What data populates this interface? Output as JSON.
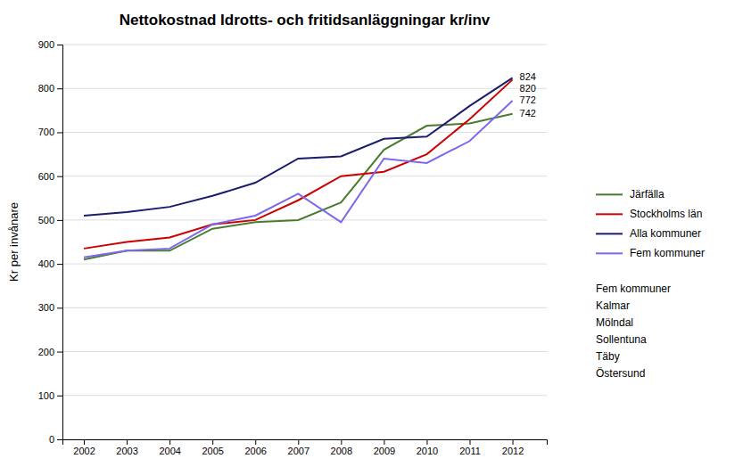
{
  "chart_data": {
    "type": "line",
    "title": "Nettokostnad Idrotts- och fritidsanläggningar kr/inv",
    "y_label": "Kr per invånare",
    "x": [
      2002,
      2003,
      2004,
      2005,
      2006,
      2007,
      2008,
      2009,
      2010,
      2011,
      2012
    ],
    "series": [
      {
        "name": "Järfälla",
        "color": "#4a7c2f",
        "values": [
          410,
          430,
          430,
          480,
          495,
          500,
          540,
          660,
          715,
          720,
          742
        ]
      },
      {
        "name": "Stockholms län",
        "color": "#cc0000",
        "values": [
          435,
          450,
          460,
          490,
          500,
          545,
          600,
          610,
          650,
          730,
          820
        ]
      },
      {
        "name": "Alla kommuner",
        "color": "#1c1c6e",
        "values": [
          510,
          518,
          530,
          555,
          585,
          640,
          645,
          685,
          690,
          760,
          824
        ]
      },
      {
        "name": "Fem kommuner",
        "color": "#7b68ee",
        "values": [
          415,
          430,
          435,
          490,
          510,
          560,
          495,
          640,
          630,
          680,
          772
        ]
      }
    ],
    "xlim": [
      2001.5,
      2012.8
    ],
    "xticks": [
      2002,
      2003,
      2004,
      2005,
      2006,
      2007,
      2008,
      2009,
      2010,
      2011,
      2012
    ],
    "ylim": [
      0,
      900
    ],
    "yticks": [
      0,
      100,
      200,
      300,
      400,
      500,
      600,
      700,
      800,
      900
    ],
    "grid": true,
    "legend": "right",
    "annotations": [
      {
        "text": "824",
        "x": 2012,
        "y": 824
      },
      {
        "text": "820",
        "x": 2012,
        "y": 820
      },
      {
        "text": "772",
        "x": 2012,
        "y": 772
      },
      {
        "text": "742",
        "x": 2012,
        "y": 742
      },
      {
        "text": "Fem kommuner"
      },
      {
        "text": "Kalmar"
      },
      {
        "text": "Mölndal"
      },
      {
        "text": "Sollentuna"
      },
      {
        "text": "Täby"
      },
      {
        "text": "Östersund"
      }
    ]
  }
}
